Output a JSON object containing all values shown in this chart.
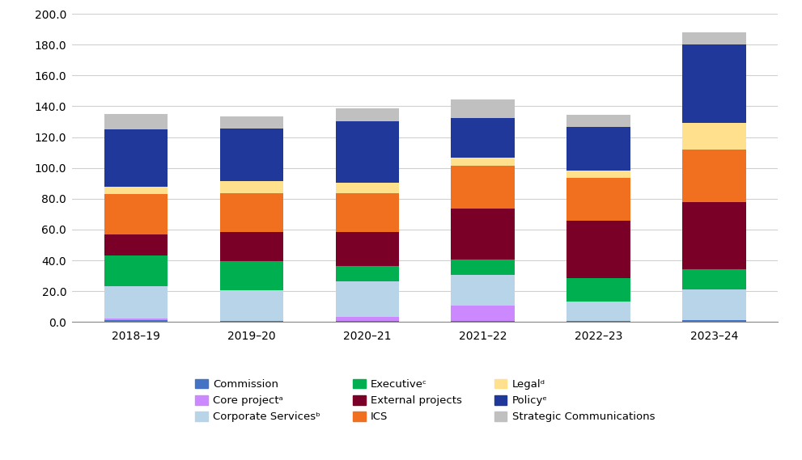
{
  "categories": [
    "2018–19",
    "2019–20",
    "2020–21",
    "2021–22",
    "2022–23",
    "2023–24"
  ],
  "series": {
    "Commission": [
      1.0,
      0.5,
      0.5,
      0.5,
      0.5,
      1.0
    ],
    "Core projectᵃ": [
      1.0,
      0.0,
      3.0,
      10.0,
      0.0,
      0.0
    ],
    "Corporate Servicesᵇ": [
      21.0,
      20.0,
      23.0,
      20.0,
      13.0,
      20.0
    ],
    "Executiveᶜ": [
      20.0,
      19.0,
      10.0,
      10.0,
      15.0,
      13.0
    ],
    "External projects": [
      14.0,
      19.0,
      22.0,
      33.0,
      37.0,
      44.0
    ],
    "ICS": [
      26.0,
      25.0,
      25.0,
      28.0,
      28.0,
      34.0
    ],
    "Legalᵈ": [
      5.0,
      8.0,
      7.0,
      5.0,
      5.0,
      17.0
    ],
    "Policyᵉ": [
      37.0,
      34.0,
      40.0,
      26.0,
      28.0,
      51.0
    ],
    "Strategic Communications": [
      10.0,
      8.0,
      8.0,
      12.0,
      8.0,
      8.0
    ]
  },
  "colors": {
    "Commission": "#4472c4",
    "Core projectᵃ": "#cc88ff",
    "Corporate Servicesᵇ": "#b8d4e8",
    "Executiveᶜ": "#00b050",
    "External projects": "#7b0028",
    "ICS": "#f07020",
    "Legalᵈ": "#ffe08c",
    "Policyᵉ": "#1f3899",
    "Strategic Communications": "#c0c0c0"
  },
  "ylim": [
    0,
    200
  ],
  "yticks": [
    0.0,
    20.0,
    40.0,
    60.0,
    80.0,
    100.0,
    120.0,
    140.0,
    160.0,
    180.0,
    200.0
  ],
  "background_color": "#ffffff",
  "grid_color": "#d0d0d0",
  "bar_width": 0.55,
  "legend_order": [
    "Commission",
    "Core projectᵃ",
    "Corporate Servicesᵇ",
    "Executiveᶜ",
    "External projects",
    "ICS",
    "Legalᵈ",
    "Policyᵉ",
    "Strategic Communications"
  ],
  "series_order": [
    "Commission",
    "Core projectᵃ",
    "Corporate Servicesᵇ",
    "Executiveᶜ",
    "External projects",
    "ICS",
    "Legalᵈ",
    "Policyᵉ",
    "Strategic Communications"
  ]
}
